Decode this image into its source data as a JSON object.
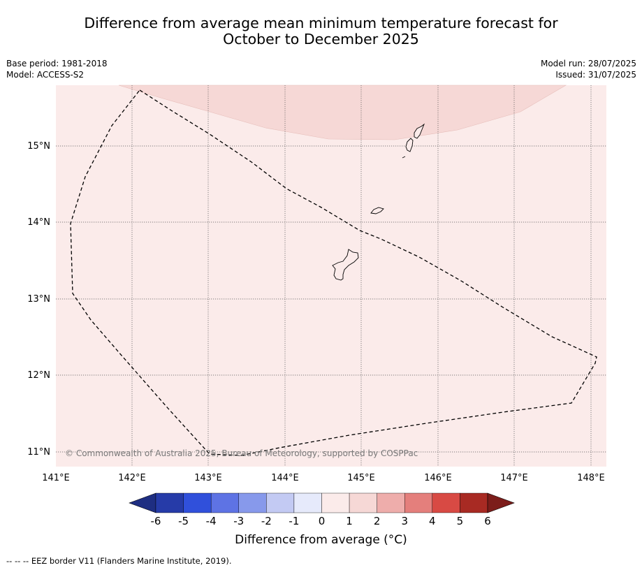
{
  "title": {
    "line1": "Difference from average mean minimum temperature forecast for",
    "line2": "October to December 2025"
  },
  "meta": {
    "base_period": "Base period: 1981-2018",
    "model": "Model: ACCESS-S2",
    "model_run": "Model run: 28/07/2025",
    "issued": "Issued: 31/07/2025"
  },
  "map": {
    "lat_labels": [
      "15°N",
      "14°N",
      "13°N",
      "12°N",
      "11°N"
    ],
    "lon_labels": [
      "141°E",
      "142°E",
      "143°E",
      "144°E",
      "145°E",
      "146°E",
      "147°E",
      "148°E"
    ],
    "copyright": "© Commonwealth of Australia 2025, Bureau of Meteorology, supported by COSPPac",
    "colors": {
      "background_anomaly": "#fbebea",
      "upper_anomaly": "#f6d8d6",
      "grid": "#555555",
      "eez_border": "#000000"
    }
  },
  "colorbar": {
    "ticks": [
      "-6",
      "-5",
      "-4",
      "-3",
      "-2",
      "-1",
      "0",
      "1",
      "2",
      "3",
      "4",
      "5",
      "6"
    ],
    "colors": [
      "#263ba8",
      "#3050db",
      "#5e73e4",
      "#8799eb",
      "#c3caf3",
      "#e6eafb",
      "#fbebea",
      "#f6d8d6",
      "#eeadab",
      "#e47f7c",
      "#d84a44",
      "#a82a23"
    ],
    "extend_low_color": "#1e2e82",
    "extend_high_color": "#7c1d1a",
    "label": "Difference from average (°C)"
  },
  "footer": "-- -- -- EEZ border V11 (Flanders Marine Institute, 2019)."
}
